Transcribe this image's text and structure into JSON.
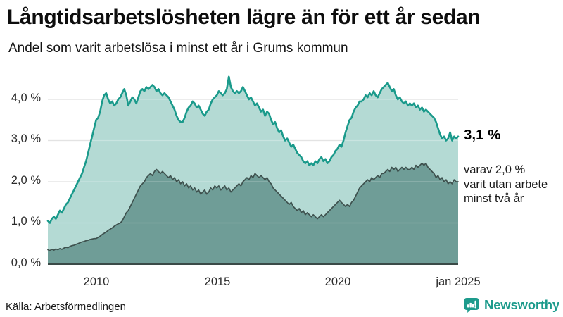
{
  "header": {
    "title": "Långtidsarbetslösheten lägre än för ett år sedan",
    "subtitle": "Andel som varit arbetslösa i minst ett år i Grums kommun"
  },
  "annotations": {
    "total_end_label": "3,1 %",
    "subset_end_label": "varav 2,0 %\nvarit utan arbete\nminst två år"
  },
  "axes": {
    "y_ticks": [
      "4,0 %",
      "3,0 %",
      "2,0 %",
      "1,0 %",
      "0,0 %"
    ],
    "x_ticks": [
      "2010",
      "2015",
      "2020",
      "jan 2025"
    ]
  },
  "footer": {
    "source": "Källa: Arbetsförmedlingen",
    "brand": "Newsworthy"
  },
  "colors": {
    "line_total": "#1a9a8b",
    "fill_total": "#b4dad4",
    "line_subset": "#3e514e",
    "fill_subset": "#6f9d97",
    "gridline": "#d9d9d9",
    "brand_teal": "#1d9b8c",
    "text": "#111111"
  },
  "chart_data": {
    "type": "area",
    "title": "Långtidsarbetslösheten lägre än för ett år sedan",
    "subtitle": "Andel som varit arbetslösa i minst ett år i Grums kommun",
    "source": "Källa: Arbetsförmedlingen",
    "unit": "%",
    "x_unit": "month",
    "x_start": "2008-01",
    "x_end": "2025-01",
    "x_tick_labels": [
      "2010",
      "2015",
      "2020",
      "jan 2025"
    ],
    "y_tick_labels": [
      "0,0 %",
      "1,0 %",
      "2,0 %",
      "3,0 %",
      "4,0 %"
    ],
    "ylim": [
      0,
      4.7
    ],
    "grid": "horizontal",
    "legend_position": "right-annotations",
    "series": [
      {
        "name": "Andel arbetslösa minst ett år",
        "end_label": "3,1 %",
        "end_value": 3.1,
        "stroke": "#1a9a8b",
        "fill": "#b4dad4",
        "values": [
          1.05,
          1.0,
          1.1,
          1.15,
          1.1,
          1.2,
          1.3,
          1.25,
          1.35,
          1.45,
          1.5,
          1.6,
          1.7,
          1.8,
          1.9,
          2.0,
          2.1,
          2.2,
          2.35,
          2.5,
          2.7,
          2.9,
          3.1,
          3.3,
          3.5,
          3.55,
          3.7,
          3.95,
          4.1,
          4.15,
          4.0,
          3.9,
          3.95,
          3.85,
          3.9,
          4.0,
          4.05,
          4.15,
          4.25,
          4.1,
          3.85,
          3.95,
          4.05,
          4.0,
          3.9,
          4.05,
          4.2,
          4.25,
          4.2,
          4.3,
          4.25,
          4.3,
          4.35,
          4.3,
          4.2,
          4.25,
          4.15,
          4.1,
          4.15,
          4.1,
          4.05,
          3.95,
          3.85,
          3.75,
          3.6,
          3.5,
          3.45,
          3.45,
          3.55,
          3.7,
          3.8,
          3.85,
          3.95,
          3.9,
          3.8,
          3.85,
          3.75,
          3.65,
          3.6,
          3.7,
          3.75,
          3.9,
          4.0,
          4.05,
          4.1,
          4.2,
          4.15,
          4.1,
          4.15,
          4.25,
          4.55,
          4.3,
          4.2,
          4.15,
          4.2,
          4.15,
          4.2,
          4.3,
          4.2,
          4.1,
          4.0,
          4.05,
          3.95,
          3.85,
          3.9,
          3.8,
          3.7,
          3.75,
          3.6,
          3.7,
          3.65,
          3.5,
          3.4,
          3.45,
          3.3,
          3.2,
          3.25,
          3.1,
          3.0,
          3.05,
          2.95,
          2.85,
          2.9,
          2.8,
          2.7,
          2.65,
          2.6,
          2.5,
          2.45,
          2.5,
          2.4,
          2.45,
          2.4,
          2.5,
          2.45,
          2.55,
          2.6,
          2.5,
          2.55,
          2.45,
          2.5,
          2.6,
          2.65,
          2.75,
          2.8,
          2.9,
          2.85,
          3.0,
          3.2,
          3.35,
          3.5,
          3.55,
          3.7,
          3.8,
          3.85,
          3.95,
          3.95,
          4.0,
          4.1,
          4.05,
          4.15,
          4.1,
          4.2,
          4.1,
          4.05,
          4.15,
          4.25,
          4.3,
          4.35,
          4.4,
          4.3,
          4.2,
          4.25,
          4.1,
          4.0,
          4.05,
          3.95,
          3.9,
          3.95,
          3.85,
          3.9,
          3.85,
          3.9,
          3.8,
          3.85,
          3.75,
          3.8,
          3.7,
          3.75,
          3.7,
          3.65,
          3.6,
          3.55,
          3.45,
          3.3,
          3.15,
          3.05,
          3.1,
          3.0,
          3.05,
          3.2,
          3.0,
          3.1,
          3.05,
          3.1
        ]
      },
      {
        "name": "Varav utan arbete minst två år",
        "end_label": "varav 2,0 % varit utan arbete minst två år",
        "end_value": 2.0,
        "stroke": "#3e514e",
        "fill": "#6f9d97",
        "values": [
          0.35,
          0.33,
          0.36,
          0.34,
          0.37,
          0.35,
          0.38,
          0.36,
          0.39,
          0.41,
          0.4,
          0.43,
          0.45,
          0.46,
          0.48,
          0.5,
          0.52,
          0.54,
          0.55,
          0.57,
          0.58,
          0.6,
          0.61,
          0.62,
          0.62,
          0.65,
          0.68,
          0.72,
          0.75,
          0.78,
          0.82,
          0.85,
          0.88,
          0.92,
          0.95,
          0.98,
          1.0,
          1.05,
          1.15,
          1.25,
          1.3,
          1.4,
          1.5,
          1.6,
          1.7,
          1.8,
          1.9,
          1.95,
          2.0,
          2.1,
          2.15,
          2.2,
          2.15,
          2.25,
          2.3,
          2.25,
          2.2,
          2.25,
          2.2,
          2.15,
          2.1,
          2.15,
          2.05,
          2.1,
          2.0,
          2.05,
          1.95,
          2.0,
          1.9,
          1.95,
          1.85,
          1.9,
          1.8,
          1.85,
          1.75,
          1.8,
          1.7,
          1.75,
          1.8,
          1.7,
          1.75,
          1.85,
          1.8,
          1.9,
          1.85,
          1.9,
          1.8,
          1.85,
          1.9,
          1.8,
          1.85,
          1.75,
          1.8,
          1.85,
          1.9,
          1.95,
          1.9,
          2.0,
          2.05,
          2.1,
          2.05,
          2.15,
          2.1,
          2.2,
          2.15,
          2.1,
          2.15,
          2.1,
          2.05,
          2.1,
          2.0,
          1.95,
          1.85,
          1.8,
          1.75,
          1.7,
          1.65,
          1.6,
          1.55,
          1.5,
          1.45,
          1.5,
          1.4,
          1.35,
          1.3,
          1.35,
          1.25,
          1.3,
          1.2,
          1.25,
          1.2,
          1.15,
          1.2,
          1.15,
          1.1,
          1.15,
          1.2,
          1.15,
          1.2,
          1.25,
          1.3,
          1.35,
          1.4,
          1.45,
          1.5,
          1.55,
          1.5,
          1.45,
          1.4,
          1.45,
          1.4,
          1.5,
          1.55,
          1.65,
          1.75,
          1.85,
          1.9,
          1.95,
          2.0,
          2.05,
          2.0,
          2.1,
          2.05,
          2.1,
          2.15,
          2.1,
          2.2,
          2.2,
          2.25,
          2.3,
          2.25,
          2.35,
          2.3,
          2.35,
          2.25,
          2.3,
          2.35,
          2.3,
          2.35,
          2.3,
          2.3,
          2.35,
          2.3,
          2.4,
          2.35,
          2.4,
          2.45,
          2.4,
          2.45,
          2.35,
          2.3,
          2.25,
          2.2,
          2.1,
          2.15,
          2.05,
          2.1,
          2.0,
          2.05,
          1.95,
          2.0,
          1.95,
          2.05,
          2.0,
          2.0
        ]
      }
    ]
  }
}
